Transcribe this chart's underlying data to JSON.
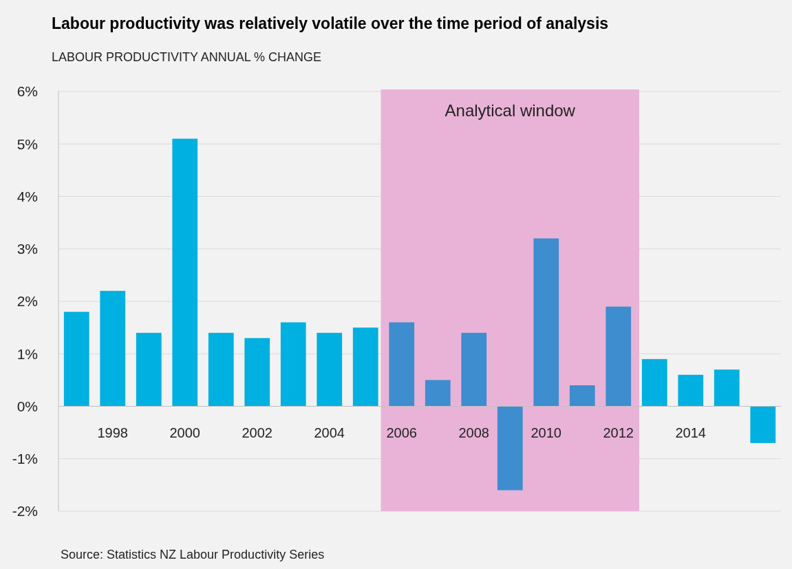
{
  "chart_data": {
    "type": "bar",
    "title": "Labour productivity was relatively volatile over the time period of analysis",
    "subtitle": "LABOUR PRODUCTIVITY ANNUAL % CHANGE",
    "categories": [
      null,
      "1998",
      null,
      "2000",
      null,
      "2002",
      null,
      "2004",
      null,
      "2006",
      null,
      "2008",
      null,
      "2010",
      null,
      "2012",
      null,
      "2014",
      null,
      null
    ],
    "values": [
      1.8,
      2.2,
      1.4,
      5.1,
      1.4,
      1.3,
      1.6,
      1.4,
      1.5,
      1.6,
      0.5,
      1.4,
      -1.6,
      3.2,
      0.4,
      1.9,
      0.9,
      0.6,
      0.7,
      -0.7
    ],
    "colors": [
      "#00b0e0",
      "#00b0e0",
      "#00b0e0",
      "#00b0e0",
      "#00b0e0",
      "#00b0e0",
      "#00b0e0",
      "#00b0e0",
      "#00b0e0",
      "#3d8dcf",
      "#3d8dcf",
      "#3d8dcf",
      "#3d8dcf",
      "#3d8dcf",
      "#3d8dcf",
      "#3d8dcf",
      "#00b0e0",
      "#00b0e0",
      "#00b0e0",
      "#00b0e0"
    ],
    "ylim": [
      -2,
      6
    ],
    "yticks": [
      {
        "value": -2,
        "label": "-2%"
      },
      {
        "value": -1,
        "label": "-1%"
      },
      {
        "value": 0,
        "label": "0%"
      },
      {
        "value": 1,
        "label": "1%"
      },
      {
        "value": 2,
        "label": "2%"
      },
      {
        "value": 3,
        "label": "3%"
      },
      {
        "value": 4,
        "label": "4%"
      },
      {
        "value": 5,
        "label": "5%"
      },
      {
        "value": 6,
        "label": "6%"
      }
    ],
    "grid": "y",
    "bands": [
      {
        "axis": "x",
        "from": "2006",
        "to": "2012",
        "label": "Analytical window",
        "color": "#e9b3d8"
      }
    ],
    "annotations": [
      "Source: Statistics NZ Labour Productivity Series"
    ]
  }
}
